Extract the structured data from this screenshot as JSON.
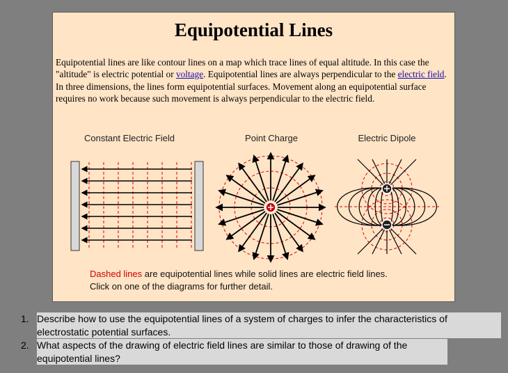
{
  "header": {
    "title": "Equipotential Lines"
  },
  "paragraph": [
    "Equipotential lines are like contour lines on a map which trace lines of equal altitude. In this case the \"altitude\" is electric potential or ",
    "voltage",
    ". Equipotential lines are always perpendicular to the ",
    "electric field",
    ". In three dimensions, the lines form equipotential surfaces. Movement along an equipotential surface requires no work because such movement is always perpendicular to the electric field."
  ],
  "diagrams": [
    {
      "label": "Constant Electric Field"
    },
    {
      "label": "Point Charge"
    },
    {
      "label": "Electric Dipole"
    }
  ],
  "caption": {
    "highlight": "Dashed lines",
    "rest": " are equipotential lines while solid lines are electric field lines.",
    "line2": "Click on one of the diagrams for further detail."
  },
  "questions": [
    {
      "number": "1.",
      "text": "Describe how to use the equipotential lines of a system of charges to infer the characteristics of electrostatic potential surfaces."
    },
    {
      "number": "2.",
      "text": "What aspects of the drawing of electric field lines are similar to those of drawing of the equipotential lines?"
    }
  ]
}
